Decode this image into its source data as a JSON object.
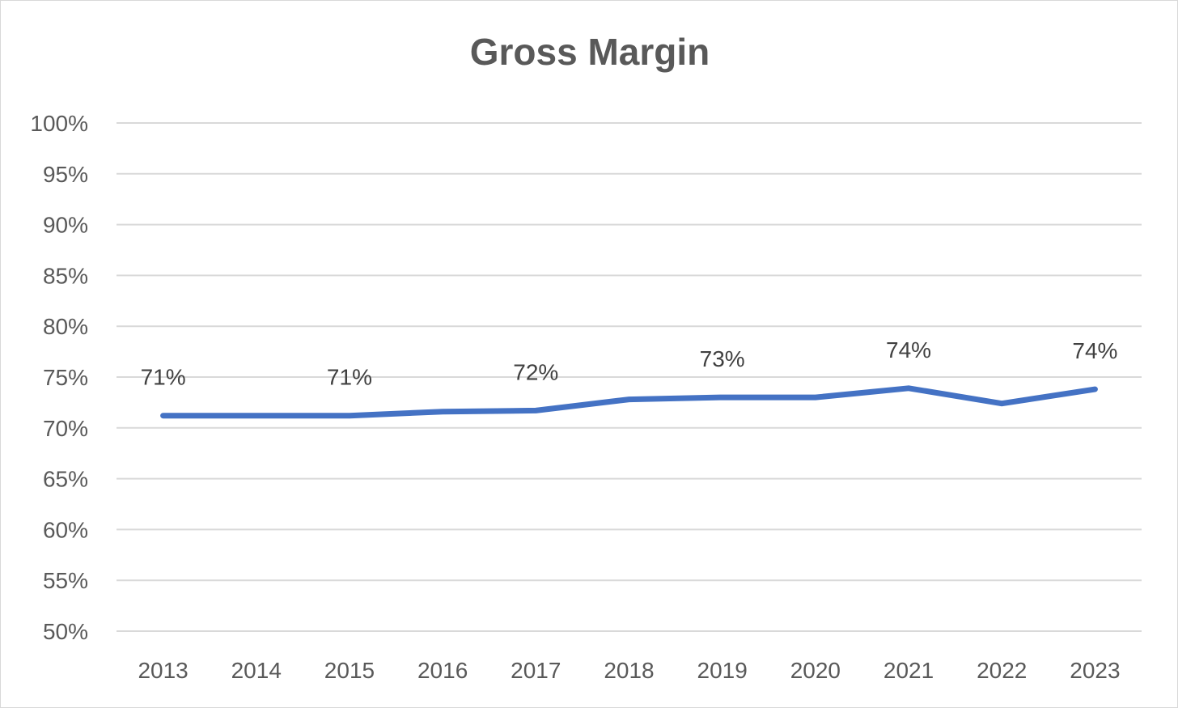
{
  "chart_data": {
    "type": "line",
    "title": "Gross Margin",
    "xlabel": "",
    "ylabel": "",
    "categories": [
      "2013",
      "2014",
      "2015",
      "2016",
      "2017",
      "2018",
      "2019",
      "2020",
      "2021",
      "2022",
      "2023"
    ],
    "series": [
      {
        "values": [
          71.2,
          71.2,
          71.2,
          71.6,
          71.7,
          72.8,
          73.0,
          73.0,
          73.9,
          72.4,
          73.8
        ],
        "color": "#4472c4"
      }
    ],
    "data_labels": [
      {
        "category": "2013",
        "text": "71%"
      },
      {
        "category": "2015",
        "text": "71%"
      },
      {
        "category": "2017",
        "text": "72%"
      },
      {
        "category": "2019",
        "text": "73%"
      },
      {
        "category": "2021",
        "text": "74%"
      },
      {
        "category": "2023",
        "text": "74%"
      }
    ],
    "ylim": [
      50,
      100
    ],
    "ytick_step": 5,
    "yticks": [
      "50%",
      "55%",
      "60%",
      "65%",
      "70%",
      "75%",
      "80%",
      "85%",
      "90%",
      "95%",
      "100%"
    ],
    "grid": true,
    "legend": "none"
  }
}
